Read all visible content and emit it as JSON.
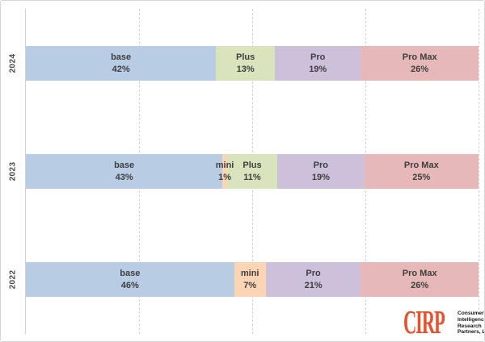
{
  "chart_data": {
    "type": "bar",
    "orientation": "horizontal",
    "stacked_percent": true,
    "title": "",
    "xlabel": "",
    "ylabel": "",
    "xlim": [
      0,
      100
    ],
    "gridlines_percent": [
      25,
      50,
      75,
      100
    ],
    "legend": "none",
    "categories": [
      "2024",
      "2023",
      "2022"
    ],
    "series": [
      {
        "name": "base",
        "color": "#b8cce4",
        "values": [
          42,
          43,
          46
        ]
      },
      {
        "name": "mini",
        "color": "#fcd5b4",
        "values": [
          0,
          1,
          7
        ]
      },
      {
        "name": "Plus",
        "color": "#d8e4bc",
        "values": [
          13,
          11,
          0
        ]
      },
      {
        "name": "Pro",
        "color": "#ccc0da",
        "values": [
          19,
          19,
          21
        ]
      },
      {
        "name": "Pro Max",
        "color": "#e6b9b8",
        "values": [
          26,
          25,
          26
        ]
      }
    ],
    "segments_by_category": [
      [
        {
          "label": "base",
          "pct": 42
        },
        {
          "label": "Plus",
          "pct": 13
        },
        {
          "label": "Pro",
          "pct": 19
        },
        {
          "label": "Pro Max",
          "pct": 26
        }
      ],
      [
        {
          "label": "base",
          "pct": 43
        },
        {
          "label": "mini",
          "pct": 1
        },
        {
          "label": "Plus",
          "pct": 11
        },
        {
          "label": "Pro",
          "pct": 19
        },
        {
          "label": "Pro Max",
          "pct": 25
        }
      ],
      [
        {
          "label": "base",
          "pct": 46
        },
        {
          "label": "mini",
          "pct": 7
        },
        {
          "label": "Pro",
          "pct": 21
        },
        {
          "label": "Pro Max",
          "pct": 26
        }
      ]
    ],
    "colors": {
      "base": "#b8cce4",
      "mini": "#fcd5b4",
      "Plus": "#d8e4bc",
      "Pro": "#ccc0da",
      "Pro Max": "#e6b9b8"
    },
    "label_format": "{label} {pct}%"
  },
  "logo": {
    "name": "CIRP",
    "color": "#e8512d",
    "lines": [
      "Consumer",
      "Intelligence",
      "Research",
      "Partners, LLC"
    ]
  }
}
